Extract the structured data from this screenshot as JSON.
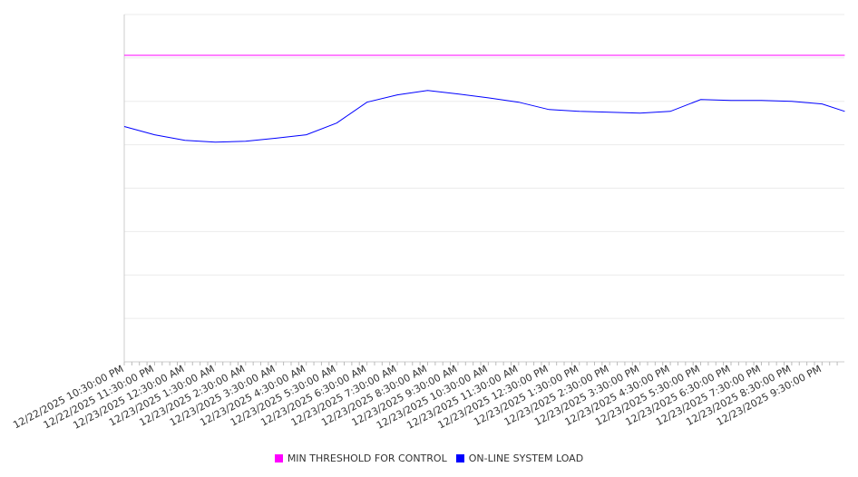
{
  "chart_data": {
    "type": "line",
    "title": "",
    "xlabel": "",
    "ylabel": "",
    "ylim": [
      0,
      8
    ],
    "grid": true,
    "legend_placement": "bottom",
    "x_tick_labels": [
      "12/22/2025 10:30:00 PM",
      "12/22/2025 11:30:00 PM",
      "12/23/2025 12:30:00 AM",
      "12/23/2025 1:30:00 AM",
      "12/23/2025 2:30:00 AM",
      "12/23/2025 3:30:00 AM",
      "12/23/2025 4:30:00 AM",
      "12/23/2025 5:30:00 AM",
      "12/23/2025 6:30:00 AM",
      "12/23/2025 7:30:00 AM",
      "12/23/2025 8:30:00 AM",
      "12/23/2025 9:30:00 AM",
      "12/23/2025 10:30:00 AM",
      "12/23/2025 11:30:00 AM",
      "12/23/2025 12:30:00 PM",
      "12/23/2025 1:30:00 PM",
      "12/23/2025 2:30:00 PM",
      "12/23/2025 3:30:00 PM",
      "12/23/2025 4:30:00 PM",
      "12/23/2025 5:30:00 PM",
      "12/23/2025 6:30:00 PM",
      "12/23/2025 7:30:00 PM",
      "12/23/2025 8:30:00 PM",
      "12/23/2025 9:30:00 PM"
    ],
    "x_hours": [
      0,
      1,
      2,
      3,
      4,
      5,
      6,
      7,
      8,
      9,
      10,
      11,
      12,
      13,
      14,
      15,
      16,
      17,
      18,
      19,
      20,
      21,
      22,
      23,
      23.75
    ],
    "series": [
      {
        "name": "MIN THRESHOLD FOR CONTROL",
        "color": "#ff00ff",
        "values": [
          7.06,
          7.06,
          7.06,
          7.06,
          7.06,
          7.06,
          7.06,
          7.06,
          7.06,
          7.06,
          7.06,
          7.06,
          7.06,
          7.06,
          7.06,
          7.06,
          7.06,
          7.06,
          7.06,
          7.06,
          7.06,
          7.06,
          7.06,
          7.06,
          7.06
        ]
      },
      {
        "name": "ON-LINE SYSTEM LOAD",
        "color": "#0000ff",
        "values": [
          5.42,
          5.23,
          5.1,
          5.06,
          5.08,
          5.15,
          5.23,
          5.5,
          5.98,
          6.15,
          6.25,
          6.17,
          6.08,
          5.98,
          5.81,
          5.77,
          5.75,
          5.73,
          5.77,
          6.04,
          6.02,
          6.02,
          6.0,
          5.94,
          5.77
        ]
      }
    ]
  }
}
